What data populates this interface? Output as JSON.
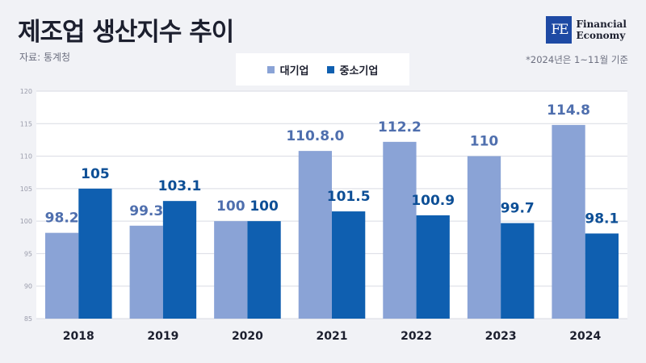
{
  "header": {
    "title": "제조업 생산지수 추이",
    "source": "자료: 통계청",
    "note": "*2024년은 1~11월 기준"
  },
  "logo": {
    "mark": "FE",
    "line1": "Financial",
    "line2": "Economy"
  },
  "colors": {
    "large": "#8aa3d6",
    "sme": "#0f5fb0",
    "large_label": "#4f6fae",
    "sme_label": "#0d4f96",
    "grid": "#d9dbe3"
  },
  "chart_data": {
    "type": "bar",
    "categories": [
      "2018",
      "2019",
      "2020",
      "2021",
      "2022",
      "2023",
      "2024"
    ],
    "series": [
      {
        "name": "대기업",
        "values": [
          98.2,
          99.3,
          100,
          110.8,
          112.2,
          110,
          114.8
        ],
        "labels": [
          "98.2",
          "99.3",
          "100",
          "110.8.0",
          "112.2",
          "110",
          "114.8"
        ]
      },
      {
        "name": "중소기업",
        "values": [
          105,
          103.1,
          100,
          101.5,
          100.9,
          99.7,
          98.1
        ],
        "labels": [
          "105",
          "103.1",
          "100",
          "101.5",
          "100.9",
          "99.7",
          "98.1"
        ]
      }
    ],
    "ylim": [
      85,
      120
    ],
    "yticks": [
      85,
      90,
      95,
      100,
      105,
      110,
      115,
      120
    ],
    "grid": true,
    "legend": "top-center"
  }
}
